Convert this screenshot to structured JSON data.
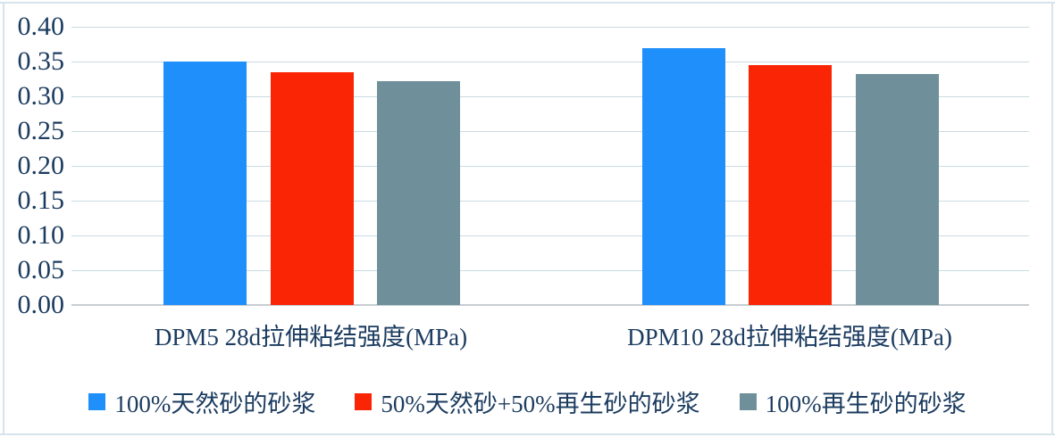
{
  "chart_data": {
    "type": "bar",
    "title": "",
    "xlabel": "",
    "ylabel": "",
    "categories": [
      "DPM5 28d拉伸粘结强度(MPa)",
      "DPM10 28d拉伸粘结强度(MPa)"
    ],
    "series": [
      {
        "name": "100%天然砂的砂浆",
        "color": "#1e8ffb",
        "values": [
          0.35,
          0.369
        ]
      },
      {
        "name": "50%天然砂+50%再生砂的砂浆",
        "color": "#fa2505",
        "values": [
          0.335,
          0.345
        ]
      },
      {
        "name": "100%再生砂的砂浆",
        "color": "#6f909a",
        "values": [
          0.322,
          0.332
        ]
      }
    ],
    "ylim": [
      0,
      0.4
    ],
    "ytick_step": 0.05,
    "ytick_labels": [
      "0.00",
      "0.05",
      "0.10",
      "0.15",
      "0.20",
      "0.25",
      "0.30",
      "0.35",
      "0.40"
    ],
    "grid": true,
    "legend_position": "bottom"
  },
  "colors": {
    "text": "#1b3b5f",
    "gridline": "#cadbe3",
    "baseline": "#c6cdd1",
    "frame": "#d8e4ea",
    "background": "#ffffff"
  }
}
